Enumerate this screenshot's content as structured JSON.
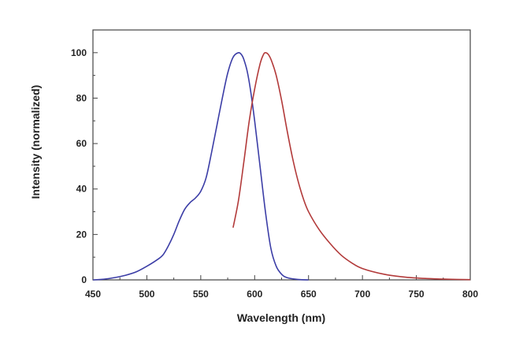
{
  "chart_data": {
    "type": "line",
    "title": "",
    "xlabel": "Wavelength (nm)",
    "ylabel": "Intensity (normalized)",
    "xlim": [
      450,
      800
    ],
    "ylim": [
      0,
      110
    ],
    "xticks": [
      450,
      500,
      550,
      600,
      650,
      700,
      750,
      800
    ],
    "yticks": [
      0,
      20,
      40,
      60,
      80,
      100
    ],
    "grid": false,
    "legend": "none",
    "series": [
      {
        "color": "#3b3da6",
        "x": [
          450,
          460,
          470,
          480,
          490,
          500,
          510,
          515,
          520,
          525,
          530,
          535,
          540,
          545,
          550,
          555,
          560,
          565,
          570,
          575,
          580,
          585,
          588,
          590,
          593,
          596,
          600,
          605,
          610,
          615,
          620,
          625,
          630,
          640,
          650
        ],
        "y": [
          0,
          0.3,
          1,
          2,
          3.5,
          6,
          9,
          11,
          15,
          20,
          26,
          31,
          34,
          36,
          39,
          45,
          56,
          68,
          80,
          91,
          98,
          100,
          99,
          97,
          92,
          84,
          70,
          50,
          30,
          14,
          6,
          2.5,
          1,
          0.2,
          0
        ]
      },
      {
        "color": "#b23a3a",
        "x": [
          580,
          585,
          590,
          595,
          600,
          605,
          608,
          610,
          613,
          616,
          620,
          625,
          630,
          635,
          640,
          645,
          650,
          660,
          670,
          680,
          690,
          700,
          720,
          740,
          760,
          780,
          800
        ],
        "y": [
          23,
          35,
          52,
          70,
          84,
          95,
          99,
          100,
          99,
          96,
          90,
          79,
          66,
          54,
          44,
          36,
          30,
          22,
          16,
          11,
          7.5,
          5,
          2.5,
          1.2,
          0.6,
          0.3,
          0.1
        ]
      }
    ]
  }
}
